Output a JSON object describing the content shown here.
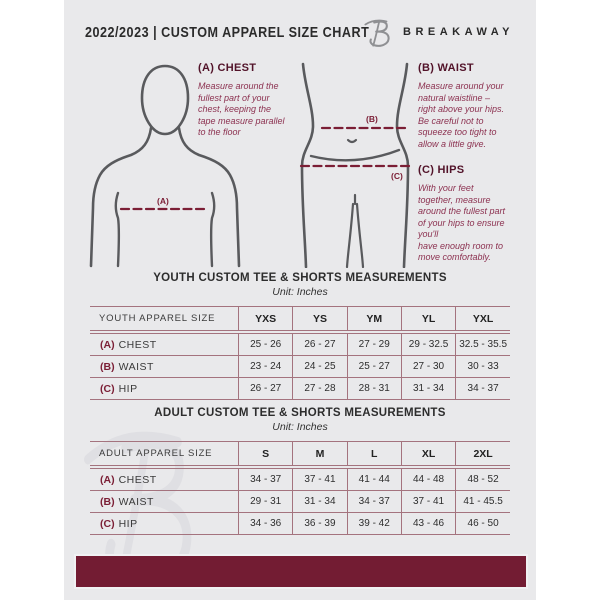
{
  "header": {
    "title": "2022/2023  |  CUSTOM APPAREL SIZE CHART",
    "brand": "BREAKAWAY"
  },
  "instructions": [
    {
      "heading": "(A) CHEST",
      "text": "Measure around the\nfullest part of your\nchest, keeping the\ntape measure parallel\nto the floor"
    },
    {
      "heading": "(B) WAIST",
      "text": "Measure around your\nnatural waistline –\nright above your hips.\nBe careful not to\nsqueeze too tight to\nallow a little give."
    },
    {
      "heading": "(C) HIPS",
      "text": "With your feet\ntogether, measure\naround the fullest part\nof your hips to ensure\nyou'll\nhave enough room to\nmove comfortably."
    }
  ],
  "diagram_labels": {
    "chest": "(A)",
    "waist": "(B)",
    "hips": "(C)"
  },
  "tables": [
    {
      "title": "YOUTH CUSTOM TEE & SHORTS MEASUREMENTS",
      "subtitle": "Unit: Inches",
      "size_header": "YOUTH APPAREL SIZE",
      "sizes": [
        "YXS",
        "YS",
        "YM",
        "YL",
        "YXL"
      ],
      "rows": [
        {
          "prefix": "(A)",
          "label": "CHEST",
          "values": [
            "25 - 26",
            "26 - 27",
            "27 - 29",
            "29 - 32.5",
            "32.5 - 35.5"
          ]
        },
        {
          "prefix": "(B)",
          "label": "WAIST",
          "values": [
            "23 - 24",
            "24 - 25",
            "25 - 27",
            "27 - 30",
            "30 - 33"
          ]
        },
        {
          "prefix": "(C)",
          "label": "HIP",
          "values": [
            "26 - 27",
            "27 - 28",
            "28 - 31",
            "31 - 34",
            "34 - 37"
          ]
        }
      ]
    },
    {
      "title": "ADULT CUSTOM TEE & SHORTS MEASUREMENTS",
      "subtitle": "Unit: Inches",
      "size_header": "ADULT APPAREL SIZE",
      "sizes": [
        "S",
        "M",
        "L",
        "XL",
        "2XL"
      ],
      "rows": [
        {
          "prefix": "(A)",
          "label": "CHEST",
          "values": [
            "34 - 37",
            "37 - 41",
            "41 - 44",
            "44 - 48",
            "48 - 52"
          ]
        },
        {
          "prefix": "(B)",
          "label": "WAIST",
          "values": [
            "29 - 31",
            "31 - 34",
            "34 - 37",
            "37 - 41",
            "41 - 45.5"
          ]
        },
        {
          "prefix": "(C)",
          "label": "HIP",
          "values": [
            "34 - 36",
            "36 - 39",
            "39 - 42",
            "43 - 46",
            "46 - 50"
          ]
        }
      ]
    }
  ],
  "colors": {
    "accent_maroon": "#731c33",
    "instruction_text": "#8c3150",
    "table_border": "#a4737e",
    "page_background": "#e9e9eb",
    "figure_stroke": "#595a5d"
  }
}
